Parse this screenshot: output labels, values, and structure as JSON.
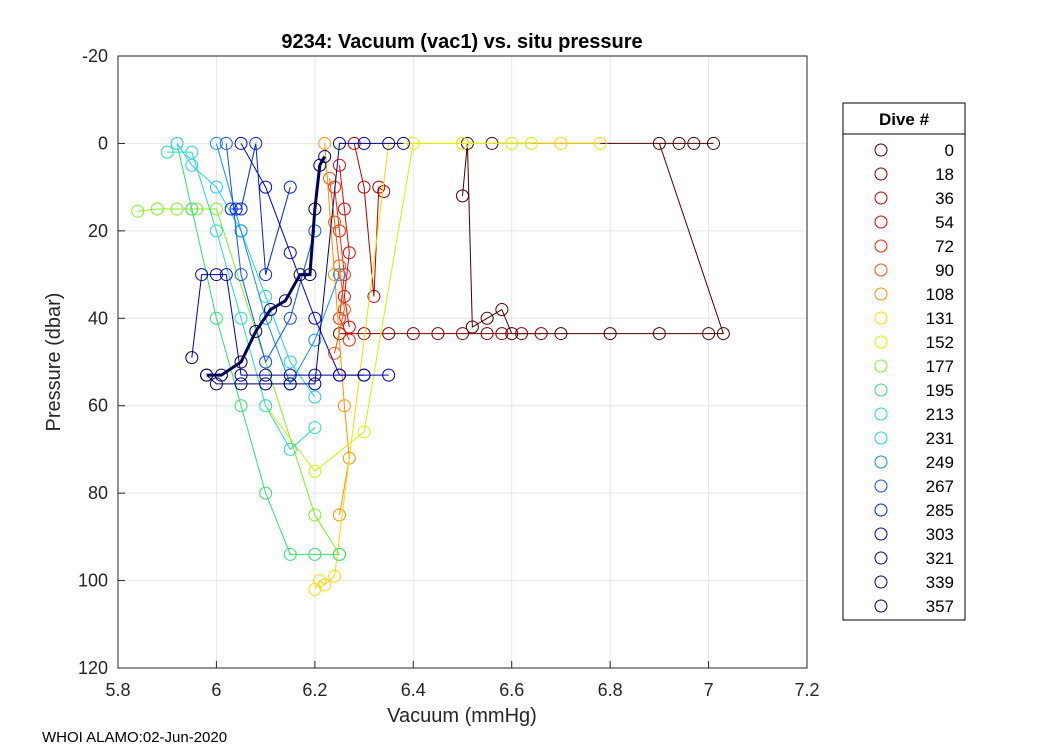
{
  "chart_data": {
    "type": "scatter",
    "title": "9234: Vacuum (vac1) vs. situ pressure",
    "xlabel": "Vacuum (mmHg)",
    "ylabel": "Pressure (dbar)",
    "xlim": [
      5.8,
      7.2
    ],
    "ylim": [
      -20,
      120
    ],
    "y_reversed": true,
    "grid": true,
    "x_ticks": [
      5.8,
      6,
      6.2,
      6.4,
      6.6,
      6.8,
      7,
      7.2
    ],
    "x_tick_labels": [
      "5.8",
      "6",
      "6.2",
      "6.4",
      "6.6",
      "6.8",
      "7",
      "7.2"
    ],
    "y_ticks": [
      -20,
      0,
      20,
      40,
      60,
      80,
      100,
      120
    ],
    "y_tick_labels": [
      "-20",
      "0",
      "20",
      "40",
      "60",
      "80",
      "100",
      "120"
    ],
    "legend": {
      "title": "Dive #",
      "placement": "outside-right",
      "entries": [
        {
          "label": "0",
          "color": "#4a0000"
        },
        {
          "label": "18",
          "color": "#7a0000"
        },
        {
          "label": "36",
          "color": "#b00000"
        },
        {
          "label": "54",
          "color": "#e00000"
        },
        {
          "label": "72",
          "color": "#ff2000"
        },
        {
          "label": "90",
          "color": "#ff5000"
        },
        {
          "label": "108",
          "color": "#ff9000"
        },
        {
          "label": "131",
          "color": "#ffd700"
        },
        {
          "label": "152",
          "color": "#d8f000"
        },
        {
          "label": "177",
          "color": "#80f020"
        },
        {
          "label": "195",
          "color": "#30e070"
        },
        {
          "label": "213",
          "color": "#20e0c0"
        },
        {
          "label": "231",
          "color": "#20d0f0"
        },
        {
          "label": "249",
          "color": "#1090f0"
        },
        {
          "label": "267",
          "color": "#1050f0"
        },
        {
          "label": "285",
          "color": "#0020e0"
        },
        {
          "label": "303",
          "color": "#0000c0"
        },
        {
          "label": "321",
          "color": "#00009a"
        },
        {
          "label": "339",
          "color": "#000078"
        },
        {
          "label": "357",
          "color": "#000050"
        }
      ]
    },
    "series": [
      {
        "name": "0",
        "color": "#4a0000",
        "x": [
          6.5,
          6.51,
          6.52,
          6.55,
          6.58,
          6.6,
          6.7,
          6.8,
          6.9,
          7.0,
          7.03,
          6.9,
          6.94,
          6.97,
          7.01,
          6.56
        ],
        "y": [
          12,
          0,
          42,
          40,
          38,
          43.5,
          43.5,
          43.5,
          43.5,
          43.5,
          43.5,
          0,
          0,
          0,
          0,
          0
        ]
      },
      {
        "name": "18",
        "color": "#7a0000",
        "x": [
          6.25,
          6.3,
          6.35,
          6.4,
          6.45,
          6.5,
          6.55,
          6.58,
          6.62,
          6.66
        ],
        "y": [
          43.5,
          43.5,
          43.5,
          43.5,
          43.5,
          43.5,
          43.5,
          43.5,
          43.5,
          43.5
        ]
      },
      {
        "name": "36",
        "color": "#b00000",
        "x": [
          6.28,
          6.3,
          6.32,
          6.33,
          6.34
        ],
        "y": [
          0,
          10,
          35,
          10,
          11
        ]
      },
      {
        "name": "54",
        "color": "#e00000",
        "x": [
          6.25,
          6.26,
          6.27,
          6.26,
          6.27
        ],
        "y": [
          5,
          15,
          25,
          35,
          42
        ]
      },
      {
        "name": "72",
        "color": "#ff2000",
        "x": [
          6.24,
          6.25,
          6.26,
          6.25,
          6.27
        ],
        "y": [
          10,
          20,
          30,
          40,
          45
        ]
      },
      {
        "name": "90",
        "color": "#ff5000",
        "x": [
          6.23,
          6.24,
          6.25,
          6.26,
          6.24
        ],
        "y": [
          8,
          18,
          28,
          38,
          48
        ]
      },
      {
        "name": "108",
        "color": "#ff9000",
        "x": [
          6.22,
          6.24,
          6.26,
          6.27,
          6.25
        ],
        "y": [
          0,
          30,
          60,
          72,
          85
        ]
      },
      {
        "name": "131",
        "color": "#ffd700",
        "x": [
          6.2,
          6.21,
          6.22,
          6.24,
          6.35,
          6.5,
          6.7,
          6.78
        ],
        "y": [
          102,
          100,
          101,
          99,
          0,
          0,
          0,
          0
        ]
      },
      {
        "name": "152",
        "color": "#d8f000",
        "x": [
          6.1,
          6.2,
          6.3,
          6.4,
          6.5,
          6.6,
          6.64
        ],
        "y": [
          60,
          75,
          66,
          0,
          0,
          0,
          0
        ]
      },
      {
        "name": "177",
        "color": "#80f020",
        "x": [
          5.84,
          5.88,
          5.92,
          5.96,
          6.0,
          6.1,
          6.2,
          6.25
        ],
        "y": [
          15.5,
          15,
          15,
          15,
          15,
          50,
          85,
          94
        ]
      },
      {
        "name": "195",
        "color": "#30e070",
        "x": [
          5.92,
          5.95,
          6.0,
          6.05,
          6.1,
          6.15,
          6.2,
          6.25
        ],
        "y": [
          0,
          15,
          40,
          60,
          80,
          94,
          94,
          94
        ]
      },
      {
        "name": "213",
        "color": "#20e0c0",
        "x": [
          5.9,
          5.95,
          6.0,
          6.05,
          6.1,
          6.15,
          6.2
        ],
        "y": [
          2,
          2,
          20,
          40,
          60,
          70,
          65
        ]
      },
      {
        "name": "231",
        "color": "#20d0f0",
        "x": [
          5.92,
          5.95,
          6.0,
          6.05,
          6.1,
          6.15,
          6.2
        ],
        "y": [
          0,
          5,
          10,
          20,
          35,
          50,
          58
        ]
      },
      {
        "name": "249",
        "color": "#1090f0",
        "x": [
          6.0,
          6.05,
          6.1,
          6.15,
          6.2,
          6.25
        ],
        "y": [
          0,
          20,
          40,
          55,
          45,
          30
        ]
      },
      {
        "name": "267",
        "color": "#1050f0",
        "x": [
          6.02,
          6.05,
          6.1,
          6.15,
          6.2
        ],
        "y": [
          0,
          30,
          50,
          40,
          20
        ]
      },
      {
        "name": "285",
        "color": "#0020e0",
        "x": [
          6.03,
          6.04,
          6.05,
          6.08,
          6.1,
          6.15
        ],
        "y": [
          15,
          15,
          15,
          0,
          30,
          10
        ]
      },
      {
        "name": "303",
        "color": "#0000c0",
        "x": [
          6.05,
          6.1,
          6.15,
          6.2,
          6.25,
          6.3,
          6.35
        ],
        "y": [
          0,
          10,
          25,
          40,
          53,
          53,
          53
        ]
      },
      {
        "name": "321",
        "color": "#00009a",
        "x": [
          5.95,
          5.97,
          6.0,
          6.02,
          6.05,
          6.1,
          6.15,
          6.2,
          6.25,
          6.3
        ],
        "y": [
          49,
          30,
          30,
          30,
          53,
          53,
          53,
          53,
          53,
          53
        ]
      },
      {
        "name": "339",
        "color": "#000078",
        "x": [
          5.98,
          6.0,
          6.05,
          6.1,
          6.15,
          6.2,
          6.25,
          6.3,
          6.35,
          6.38
        ],
        "y": [
          53,
          55,
          55,
          55,
          55,
          55,
          0,
          0,
          0,
          0
        ]
      },
      {
        "name": "357",
        "color": "#000050",
        "x": [
          5.98,
          6.01,
          6.05,
          6.08,
          6.11,
          6.14,
          6.17,
          6.19,
          6.2,
          6.21,
          6.22
        ],
        "y": [
          53,
          53,
          50,
          43,
          38,
          36,
          30,
          30,
          15,
          5,
          3
        ],
        "bold": true
      }
    ]
  },
  "footer": "WHOI ALAMO:02-Jun-2020"
}
